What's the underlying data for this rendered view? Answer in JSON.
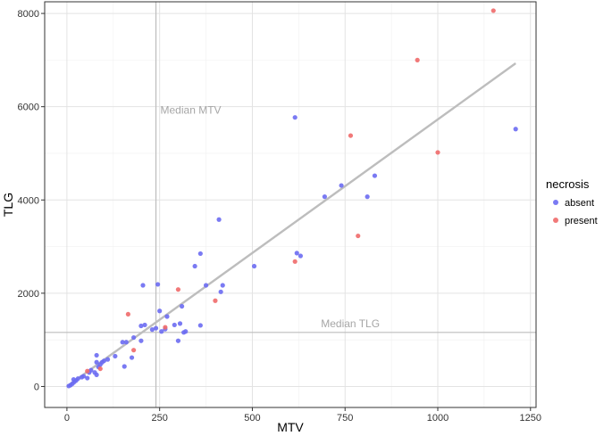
{
  "chart_data": {
    "type": "scatter",
    "xlabel": "MTV",
    "ylabel": "TLG",
    "xlim": [
      -60,
      1265
    ],
    "ylim": [
      -450,
      8250
    ],
    "x_ticks": [
      0,
      250,
      500,
      750,
      1000,
      1250
    ],
    "y_ticks": [
      0,
      2000,
      4000,
      6000,
      8000
    ],
    "grid": true,
    "legend": {
      "title": "necrosis",
      "position": "right",
      "entries": [
        {
          "label": "absent",
          "color": "#6b6bf2"
        },
        {
          "label": "present",
          "color": "#f06a6a"
        }
      ]
    },
    "reference_lines": [
      {
        "orientation": "vertical",
        "value": 240,
        "label": "Median MTV"
      },
      {
        "orientation": "horizontal",
        "value": 1160,
        "label": "Median TLG"
      }
    ],
    "fit_line": {
      "x": [
        0,
        1210
      ],
      "y": [
        0,
        6930
      ],
      "color": "#bdbdbd"
    },
    "series": [
      {
        "name": "absent",
        "color": "#6b6bf2",
        "points": [
          [
            5,
            10
          ],
          [
            10,
            30
          ],
          [
            15,
            60
          ],
          [
            20,
            100
          ],
          [
            25,
            130
          ],
          [
            18,
            150
          ],
          [
            30,
            170
          ],
          [
            40,
            200
          ],
          [
            45,
            220
          ],
          [
            55,
            180
          ],
          [
            60,
            300
          ],
          [
            65,
            350
          ],
          [
            75,
            300
          ],
          [
            80,
            250
          ],
          [
            85,
            420
          ],
          [
            90,
            470
          ],
          [
            95,
            520
          ],
          [
            100,
            550
          ],
          [
            110,
            580
          ],
          [
            80,
            520
          ],
          [
            80,
            670
          ],
          [
            150,
            950
          ],
          [
            160,
            950
          ],
          [
            155,
            430
          ],
          [
            175,
            620
          ],
          [
            200,
            980
          ],
          [
            210,
            1320
          ],
          [
            230,
            1220
          ],
          [
            240,
            1250
          ],
          [
            250,
            1620
          ],
          [
            255,
            1180
          ],
          [
            265,
            1230
          ],
          [
            270,
            1500
          ],
          [
            290,
            1320
          ],
          [
            305,
            1350
          ],
          [
            310,
            1720
          ],
          [
            320,
            1180
          ],
          [
            345,
            2580
          ],
          [
            360,
            2850
          ],
          [
            375,
            2170
          ],
          [
            410,
            3580
          ],
          [
            415,
            2030
          ],
          [
            420,
            2170
          ],
          [
            205,
            2170
          ],
          [
            245,
            2190
          ],
          [
            300,
            980
          ],
          [
            315,
            1160
          ],
          [
            360,
            1310
          ],
          [
            505,
            2580
          ],
          [
            615,
            5770
          ],
          [
            620,
            2860
          ],
          [
            630,
            2800
          ],
          [
            695,
            4070
          ],
          [
            740,
            4310
          ],
          [
            810,
            4070
          ],
          [
            830,
            4520
          ],
          [
            1210,
            5520
          ],
          [
            180,
            1050
          ],
          [
            130,
            650
          ],
          [
            200,
            1300
          ]
        ]
      },
      {
        "name": "present",
        "color": "#f06a6a",
        "points": [
          [
            55,
            330
          ],
          [
            90,
            380
          ],
          [
            165,
            1550
          ],
          [
            180,
            780
          ],
          [
            265,
            1270
          ],
          [
            300,
            2080
          ],
          [
            400,
            1840
          ],
          [
            615,
            2680
          ],
          [
            765,
            5380
          ],
          [
            785,
            3230
          ],
          [
            945,
            7000
          ],
          [
            1000,
            5020
          ],
          [
            1150,
            8060
          ]
        ]
      }
    ]
  }
}
